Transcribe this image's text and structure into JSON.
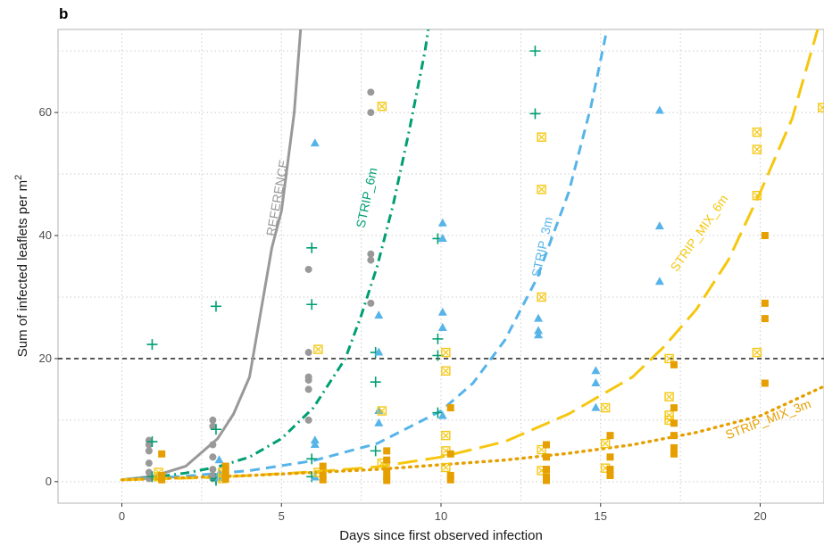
{
  "panel_letter": "b",
  "chart_data": {
    "type": "scatter",
    "xlabel": "Days since first observed infection",
    "ylabel": "Sum of infected leaflets per m",
    "ylabel_sup": "2",
    "xlim": [
      -2,
      22
    ],
    "ylim": [
      -3.5,
      73.5
    ],
    "x_ticks": [
      0,
      5,
      10,
      15,
      20
    ],
    "y_ticks": [
      0,
      20,
      40,
      60
    ],
    "grid": true,
    "legend": "none",
    "threshold": {
      "y": 20,
      "style": "dashed",
      "color": "#333333"
    },
    "series": [
      {
        "name": "REFERENCE",
        "color": "#999999",
        "marker": "circle",
        "line_style": "solid",
        "label_pos": {
          "x": 5.0,
          "y": 46,
          "angle": -80
        },
        "curve": [
          [
            0,
            0.3
          ],
          [
            1,
            0.9
          ],
          [
            2,
            2.5
          ],
          [
            3,
            7
          ],
          [
            3.5,
            11
          ],
          [
            4,
            17
          ],
          [
            4.3,
            26
          ],
          [
            4.7,
            38
          ],
          [
            5.0,
            44
          ],
          [
            5.4,
            60
          ],
          [
            5.6,
            73.5
          ]
        ],
        "points": [
          [
            0.85,
            0.5
          ],
          [
            0.85,
            1.5
          ],
          [
            0.85,
            3
          ],
          [
            0.85,
            5
          ],
          [
            0.85,
            6
          ],
          [
            0.85,
            6.7
          ],
          [
            2.85,
            0.5
          ],
          [
            2.85,
            1
          ],
          [
            2.85,
            2
          ],
          [
            2.85,
            4
          ],
          [
            2.85,
            6
          ],
          [
            2.85,
            9
          ],
          [
            2.85,
            10
          ],
          [
            5.85,
            10
          ],
          [
            5.85,
            15
          ],
          [
            5.85,
            16.5
          ],
          [
            5.85,
            17
          ],
          [
            5.85,
            21
          ],
          [
            5.85,
            34.5
          ],
          [
            7.8,
            29
          ],
          [
            7.8,
            36
          ],
          [
            7.8,
            37
          ],
          [
            7.8,
            60
          ],
          [
            7.8,
            63.3
          ]
        ]
      },
      {
        "name": "STRIP_6m",
        "color": "#009e73",
        "marker": "plus",
        "line_style": "dotdash",
        "label_pos": {
          "x": 7.8,
          "y": 46,
          "angle": -78
        },
        "curve": [
          [
            0,
            0.3
          ],
          [
            1,
            0.7
          ],
          [
            2,
            1.4
          ],
          [
            3,
            2.4
          ],
          [
            4,
            4
          ],
          [
            5,
            7
          ],
          [
            6,
            12
          ],
          [
            7,
            20
          ],
          [
            7.5,
            27
          ],
          [
            8,
            35
          ],
          [
            8.5,
            45
          ],
          [
            9,
            57
          ],
          [
            9.5,
            70
          ],
          [
            9.6,
            73.5
          ]
        ],
        "points": [
          [
            0.95,
            22.3
          ],
          [
            0.95,
            6.5
          ],
          [
            0.95,
            0.8
          ],
          [
            2.95,
            28.5
          ],
          [
            2.95,
            8.5
          ],
          [
            2.95,
            0.5
          ],
          [
            2.95,
            0.2
          ],
          [
            5.95,
            38
          ],
          [
            5.95,
            28.8
          ],
          [
            5.95,
            3.7
          ],
          [
            5.95,
            0.8
          ],
          [
            7.95,
            16.2
          ],
          [
            7.95,
            21
          ],
          [
            7.95,
            5
          ],
          [
            9.9,
            39.5
          ],
          [
            9.9,
            23.2
          ],
          [
            9.9,
            20.5
          ],
          [
            9.9,
            11.2
          ],
          [
            12.95,
            70
          ],
          [
            12.95,
            59.8
          ]
        ]
      },
      {
        "name": "STRIP_3m",
        "color": "#56b4e9",
        "marker": "triangle",
        "line_style": "dashed",
        "label_pos": {
          "x": 13.3,
          "y": 38,
          "angle": -78
        },
        "curve": [
          [
            0,
            0.3
          ],
          [
            2,
            0.9
          ],
          [
            4,
            1.8
          ],
          [
            6,
            3.4
          ],
          [
            8,
            6.2
          ],
          [
            10,
            11.5
          ],
          [
            11,
            16
          ],
          [
            12,
            23
          ],
          [
            13,
            33
          ],
          [
            14,
            47
          ],
          [
            14.7,
            61
          ],
          [
            15.2,
            73.5
          ]
        ],
        "points": [
          [
            3.05,
            3.5
          ],
          [
            3.05,
            1.3
          ],
          [
            3.05,
            0.6
          ],
          [
            6.05,
            55
          ],
          [
            6.05,
            6.7
          ],
          [
            6.05,
            6
          ],
          [
            6.05,
            0.7
          ],
          [
            8.05,
            27
          ],
          [
            8.05,
            21
          ],
          [
            8.05,
            11.5
          ],
          [
            8.05,
            9.5
          ],
          [
            10.05,
            42
          ],
          [
            10.05,
            39.5
          ],
          [
            10.05,
            25
          ],
          [
            10.05,
            27.5
          ],
          [
            10.05,
            10.7
          ],
          [
            13.05,
            26.5
          ],
          [
            13.05,
            24.5
          ],
          [
            13.05,
            23.8
          ],
          [
            14.85,
            18
          ],
          [
            14.85,
            16
          ],
          [
            14.85,
            12
          ],
          [
            16.85,
            60.3
          ],
          [
            16.85,
            41.5
          ],
          [
            16.85,
            32.5
          ]
        ]
      },
      {
        "name": "STRIP_MIX_6m",
        "color": "#f5c710",
        "marker": "square-x",
        "line_style": "longdash",
        "label_pos": {
          "x": 18.2,
          "y": 40,
          "angle": -55
        },
        "curve": [
          [
            0,
            0.3
          ],
          [
            3,
            0.7
          ],
          [
            6,
            1.6
          ],
          [
            8,
            2.4
          ],
          [
            10,
            4
          ],
          [
            12,
            6.5
          ],
          [
            14,
            11
          ],
          [
            15,
            14
          ],
          [
            16,
            17
          ],
          [
            17,
            22
          ],
          [
            18,
            28
          ],
          [
            19,
            36
          ],
          [
            20,
            47
          ],
          [
            21,
            59
          ],
          [
            21.8,
            73.5
          ]
        ],
        "points": [
          [
            1.15,
            1.5
          ],
          [
            1.15,
            0.8
          ],
          [
            3.15,
            1.5
          ],
          [
            3.15,
            0.5
          ],
          [
            6.15,
            21.5
          ],
          [
            6.15,
            1.5
          ],
          [
            8.15,
            61
          ],
          [
            8.15,
            11.5
          ],
          [
            8.15,
            3
          ],
          [
            10.15,
            21
          ],
          [
            10.15,
            18
          ],
          [
            10.15,
            7.5
          ],
          [
            10.15,
            5
          ],
          [
            10.15,
            2.3
          ],
          [
            13.15,
            56
          ],
          [
            13.15,
            47.5
          ],
          [
            13.15,
            30
          ],
          [
            13.15,
            5.2
          ],
          [
            13.15,
            1.8
          ],
          [
            15.15,
            12
          ],
          [
            15.15,
            6.2
          ],
          [
            15.15,
            2.2
          ],
          [
            17.15,
            20
          ],
          [
            17.15,
            13.8
          ],
          [
            17.15,
            10.8
          ],
          [
            17.15,
            10
          ],
          [
            19.9,
            56.8
          ],
          [
            19.9,
            54
          ],
          [
            19.9,
            46.5
          ],
          [
            19.9,
            21
          ],
          [
            21.95,
            60.8
          ]
        ]
      },
      {
        "name": "STRIP_MIX_3m",
        "color": "#e69f00",
        "marker": "square",
        "line_style": "dotted",
        "label_pos": {
          "x": 20.3,
          "y": 9.5,
          "angle": -21
        },
        "curve": [
          [
            0,
            0.3
          ],
          [
            4,
            1
          ],
          [
            8,
            2
          ],
          [
            12,
            3.5
          ],
          [
            14,
            4.6
          ],
          [
            16,
            6
          ],
          [
            18,
            8
          ],
          [
            20,
            10.7
          ],
          [
            22,
            15.5
          ]
        ],
        "points": [
          [
            1.25,
            4.5
          ],
          [
            1.25,
            1
          ],
          [
            1.25,
            0.3
          ],
          [
            3.25,
            2.5
          ],
          [
            3.25,
            1.8
          ],
          [
            3.25,
            1
          ],
          [
            3.25,
            0.4
          ],
          [
            6.3,
            2.5
          ],
          [
            6.3,
            1
          ],
          [
            6.3,
            0.3
          ],
          [
            8.3,
            5
          ],
          [
            8.3,
            3.5
          ],
          [
            8.3,
            1.8
          ],
          [
            8.3,
            0.8
          ],
          [
            8.3,
            0.2
          ],
          [
            10.3,
            12
          ],
          [
            10.3,
            4.5
          ],
          [
            10.3,
            1
          ],
          [
            10.3,
            0.3
          ],
          [
            13.3,
            6
          ],
          [
            13.3,
            4
          ],
          [
            13.3,
            2
          ],
          [
            13.3,
            0.8
          ],
          [
            13.3,
            0.2
          ],
          [
            15.3,
            7.5
          ],
          [
            15.3,
            4
          ],
          [
            15.3,
            2
          ],
          [
            15.3,
            1
          ],
          [
            17.3,
            19
          ],
          [
            17.3,
            12
          ],
          [
            17.3,
            9.5
          ],
          [
            17.3,
            7.5
          ],
          [
            17.3,
            5.5
          ],
          [
            17.3,
            4.5
          ],
          [
            20.15,
            40
          ],
          [
            20.15,
            29
          ],
          [
            20.15,
            26.5
          ],
          [
            20.15,
            16
          ]
        ]
      }
    ]
  }
}
